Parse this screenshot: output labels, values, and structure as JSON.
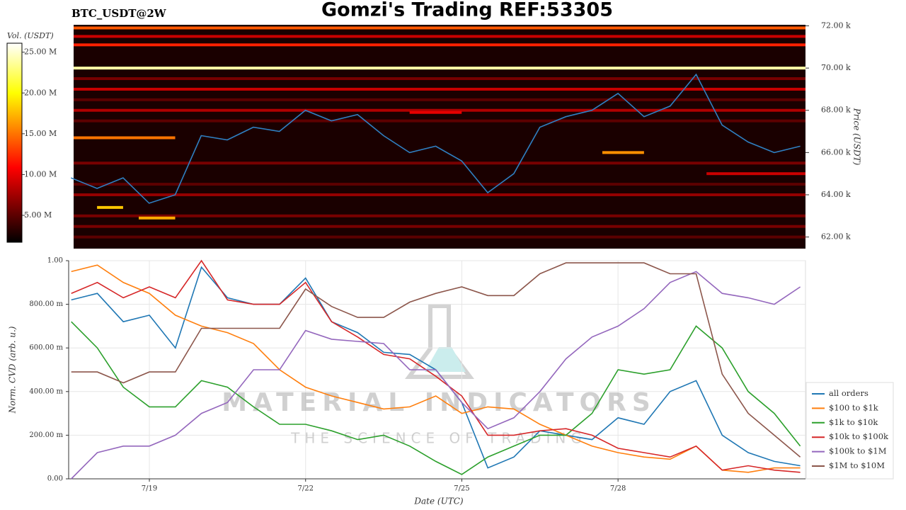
{
  "chart_data": [
    {
      "type": "heatmap",
      "title": "Gomzi's Trading REF:53305",
      "subtitle": "BTC_USDT@2W",
      "ylabel": "Price (USDT)",
      "xlim": [
        17.55,
        31.6
      ],
      "ylim": [
        61450,
        72050
      ],
      "yticks": [
        {
          "value": 62000,
          "label": "62.00 k"
        },
        {
          "value": 64000,
          "label": "64.00 k"
        },
        {
          "value": 66000,
          "label": "66.00 k"
        },
        {
          "value": 68000,
          "label": "68.00 k"
        },
        {
          "value": 70000,
          "label": "70.00 k"
        },
        {
          "value": 72000,
          "label": "72.00 k"
        }
      ],
      "colorbar": {
        "label": "Vol. (USDT)",
        "lim": [
          1700000,
          26100000
        ],
        "ticks": [
          {
            "value": 5000000,
            "label": "5.00 M"
          },
          {
            "value": 10000000,
            "label": "10.00 M"
          },
          {
            "value": 15000000,
            "label": "15.00 M"
          },
          {
            "value": 20000000,
            "label": "20.00 M"
          },
          {
            "value": 25000000,
            "label": "25.00 M"
          }
        ]
      },
      "levels": [
        {
          "price": 71900,
          "x0": 17.55,
          "x1": 31.6,
          "volume": 14000000
        },
        {
          "price": 71500,
          "x0": 17.55,
          "x1": 31.6,
          "volume": 9000000
        },
        {
          "price": 71100,
          "x0": 17.55,
          "x1": 31.6,
          "volume": 12000000
        },
        {
          "price": 70000,
          "x0": 17.55,
          "x1": 31.6,
          "volume": 24000000
        },
        {
          "price": 69500,
          "x0": 17.55,
          "x1": 31.6,
          "volume": 6000000
        },
        {
          "price": 69000,
          "x0": 17.55,
          "x1": 31.6,
          "volume": 9000000
        },
        {
          "price": 68500,
          "x0": 17.55,
          "x1": 31.6,
          "volume": 5000000
        },
        {
          "price": 68000,
          "x0": 17.55,
          "x1": 31.6,
          "volume": 8000000
        },
        {
          "price": 67900,
          "x0": 24.0,
          "x1": 25.0,
          "volume": 10000000
        },
        {
          "price": 67500,
          "x0": 17.55,
          "x1": 31.6,
          "volume": 5000000
        },
        {
          "price": 66700,
          "x0": 17.55,
          "x1": 19.5,
          "volume": 15000000
        },
        {
          "price": 66000,
          "x0": 27.7,
          "x1": 28.5,
          "volume": 16000000
        },
        {
          "price": 65500,
          "x0": 17.55,
          "x1": 31.6,
          "volume": 6000000
        },
        {
          "price": 65000,
          "x0": 29.7,
          "x1": 31.6,
          "volume": 9000000
        },
        {
          "price": 64500,
          "x0": 17.55,
          "x1": 31.6,
          "volume": 5000000
        },
        {
          "price": 64000,
          "x0": 17.55,
          "x1": 31.6,
          "volume": 7000000
        },
        {
          "price": 63400,
          "x0": 18.0,
          "x1": 18.5,
          "volume": 18000000
        },
        {
          "price": 63000,
          "x0": 17.55,
          "x1": 31.6,
          "volume": 6000000
        },
        {
          "price": 62900,
          "x0": 18.8,
          "x1": 19.5,
          "volume": 17000000
        },
        {
          "price": 62500,
          "x0": 17.55,
          "x1": 31.6,
          "volume": 6000000
        },
        {
          "price": 62000,
          "x0": 17.55,
          "x1": 31.6,
          "volume": 5000000
        }
      ],
      "color": "#2f7fc1",
      "x": [
        17.5,
        18,
        18.5,
        19,
        19.5,
        20,
        20.5,
        21,
        21.5,
        22,
        22.5,
        23,
        23.5,
        24,
        24.5,
        25,
        25.5,
        26,
        26.5,
        27,
        27.5,
        28,
        28.5,
        29,
        29.5,
        30,
        30.5,
        31,
        31.5
      ],
      "values": [
        64800,
        64300,
        64800,
        63600,
        64000,
        66800,
        66600,
        67200,
        67000,
        68000,
        67500,
        67800,
        66800,
        66000,
        66300,
        65600,
        64100,
        65000,
        67200,
        67700,
        68000,
        68800,
        67700,
        68200,
        69700,
        67300,
        66500,
        66000,
        66300
      ]
    },
    {
      "type": "line",
      "xlabel": "Date (UTC)",
      "ylabel": "Norm. CVD (arb. u.)",
      "xlim": [
        17.45,
        31.6
      ],
      "ylim": [
        0,
        1
      ],
      "xticks": [
        {
          "value": 19,
          "label": "7/19"
        },
        {
          "value": 22,
          "label": "7/22"
        },
        {
          "value": 25,
          "label": "7/25"
        },
        {
          "value": 28,
          "label": "7/28"
        }
      ],
      "yticks": [
        {
          "value": 0,
          "label": "0.00"
        },
        {
          "value": 0.2,
          "label": "200.00 m"
        },
        {
          "value": 0.4,
          "label": "400.00 m"
        },
        {
          "value": 0.6,
          "label": "600.00 m"
        },
        {
          "value": 0.8,
          "label": "800.00 m"
        },
        {
          "value": 1,
          "label": "1.00"
        }
      ],
      "grid": true,
      "legend": "lower right",
      "annotations": [
        "MATERIAL INDICATORS",
        "THE SCIENCE OF TRADING"
      ],
      "x": [
        17.5,
        18,
        18.5,
        19,
        19.5,
        20,
        20.5,
        21,
        21.5,
        22,
        22.5,
        23,
        23.5,
        24,
        24.5,
        25,
        25.5,
        26,
        26.5,
        27,
        27.5,
        28,
        28.5,
        29,
        29.5,
        30,
        30.5,
        31,
        31.5
      ],
      "series": [
        {
          "name": "all orders",
          "color": "#1f77b4",
          "values": [
            0.82,
            0.85,
            0.72,
            0.75,
            0.6,
            0.97,
            0.83,
            0.8,
            0.8,
            0.92,
            0.72,
            0.67,
            0.58,
            0.57,
            0.5,
            0.35,
            0.05,
            0.1,
            0.22,
            0.2,
            0.18,
            0.28,
            0.25,
            0.4,
            0.45,
            0.2,
            0.12,
            0.08,
            0.06
          ]
        },
        {
          "name": "$100 to $1k",
          "color": "#ff7f0e",
          "values": [
            0.95,
            0.98,
            0.9,
            0.85,
            0.75,
            0.7,
            0.67,
            0.62,
            0.5,
            0.42,
            0.38,
            0.35,
            0.32,
            0.33,
            0.38,
            0.3,
            0.33,
            0.32,
            0.25,
            0.2,
            0.15,
            0.12,
            0.1,
            0.09,
            0.15,
            0.04,
            0.03,
            0.05,
            0.05
          ]
        },
        {
          "name": "$1k to $10k",
          "color": "#2ca02c",
          "values": [
            0.72,
            0.6,
            0.42,
            0.33,
            0.33,
            0.45,
            0.42,
            0.33,
            0.25,
            0.25,
            0.22,
            0.18,
            0.2,
            0.15,
            0.08,
            0.02,
            0.1,
            0.15,
            0.2,
            0.2,
            0.3,
            0.5,
            0.48,
            0.5,
            0.7,
            0.6,
            0.4,
            0.3,
            0.15
          ]
        },
        {
          "name": "$10k to $100k",
          "color": "#d62728",
          "values": [
            0.85,
            0.9,
            0.83,
            0.88,
            0.83,
            1.0,
            0.82,
            0.8,
            0.8,
            0.9,
            0.72,
            0.65,
            0.57,
            0.55,
            0.47,
            0.38,
            0.2,
            0.2,
            0.22,
            0.23,
            0.2,
            0.14,
            0.12,
            0.1,
            0.15,
            0.04,
            0.06,
            0.04,
            0.03
          ]
        },
        {
          "name": "$100k to $1M",
          "color": "#9467bd",
          "values": [
            0.0,
            0.12,
            0.15,
            0.15,
            0.2,
            0.3,
            0.35,
            0.5,
            0.5,
            0.68,
            0.64,
            0.63,
            0.62,
            0.5,
            0.5,
            0.35,
            0.23,
            0.28,
            0.4,
            0.55,
            0.65,
            0.7,
            0.78,
            0.9,
            0.95,
            0.85,
            0.83,
            0.8,
            0.88
          ]
        },
        {
          "name": "$1M to $10M",
          "color": "#8c564b",
          "values": [
            0.49,
            0.49,
            0.44,
            0.49,
            0.49,
            0.69,
            0.69,
            0.69,
            0.69,
            0.87,
            0.79,
            0.74,
            0.74,
            0.81,
            0.85,
            0.88,
            0.84,
            0.84,
            0.94,
            0.99,
            0.99,
            0.99,
            0.99,
            0.94,
            0.94,
            0.48,
            0.3,
            0.2,
            0.1
          ]
        }
      ]
    }
  ]
}
